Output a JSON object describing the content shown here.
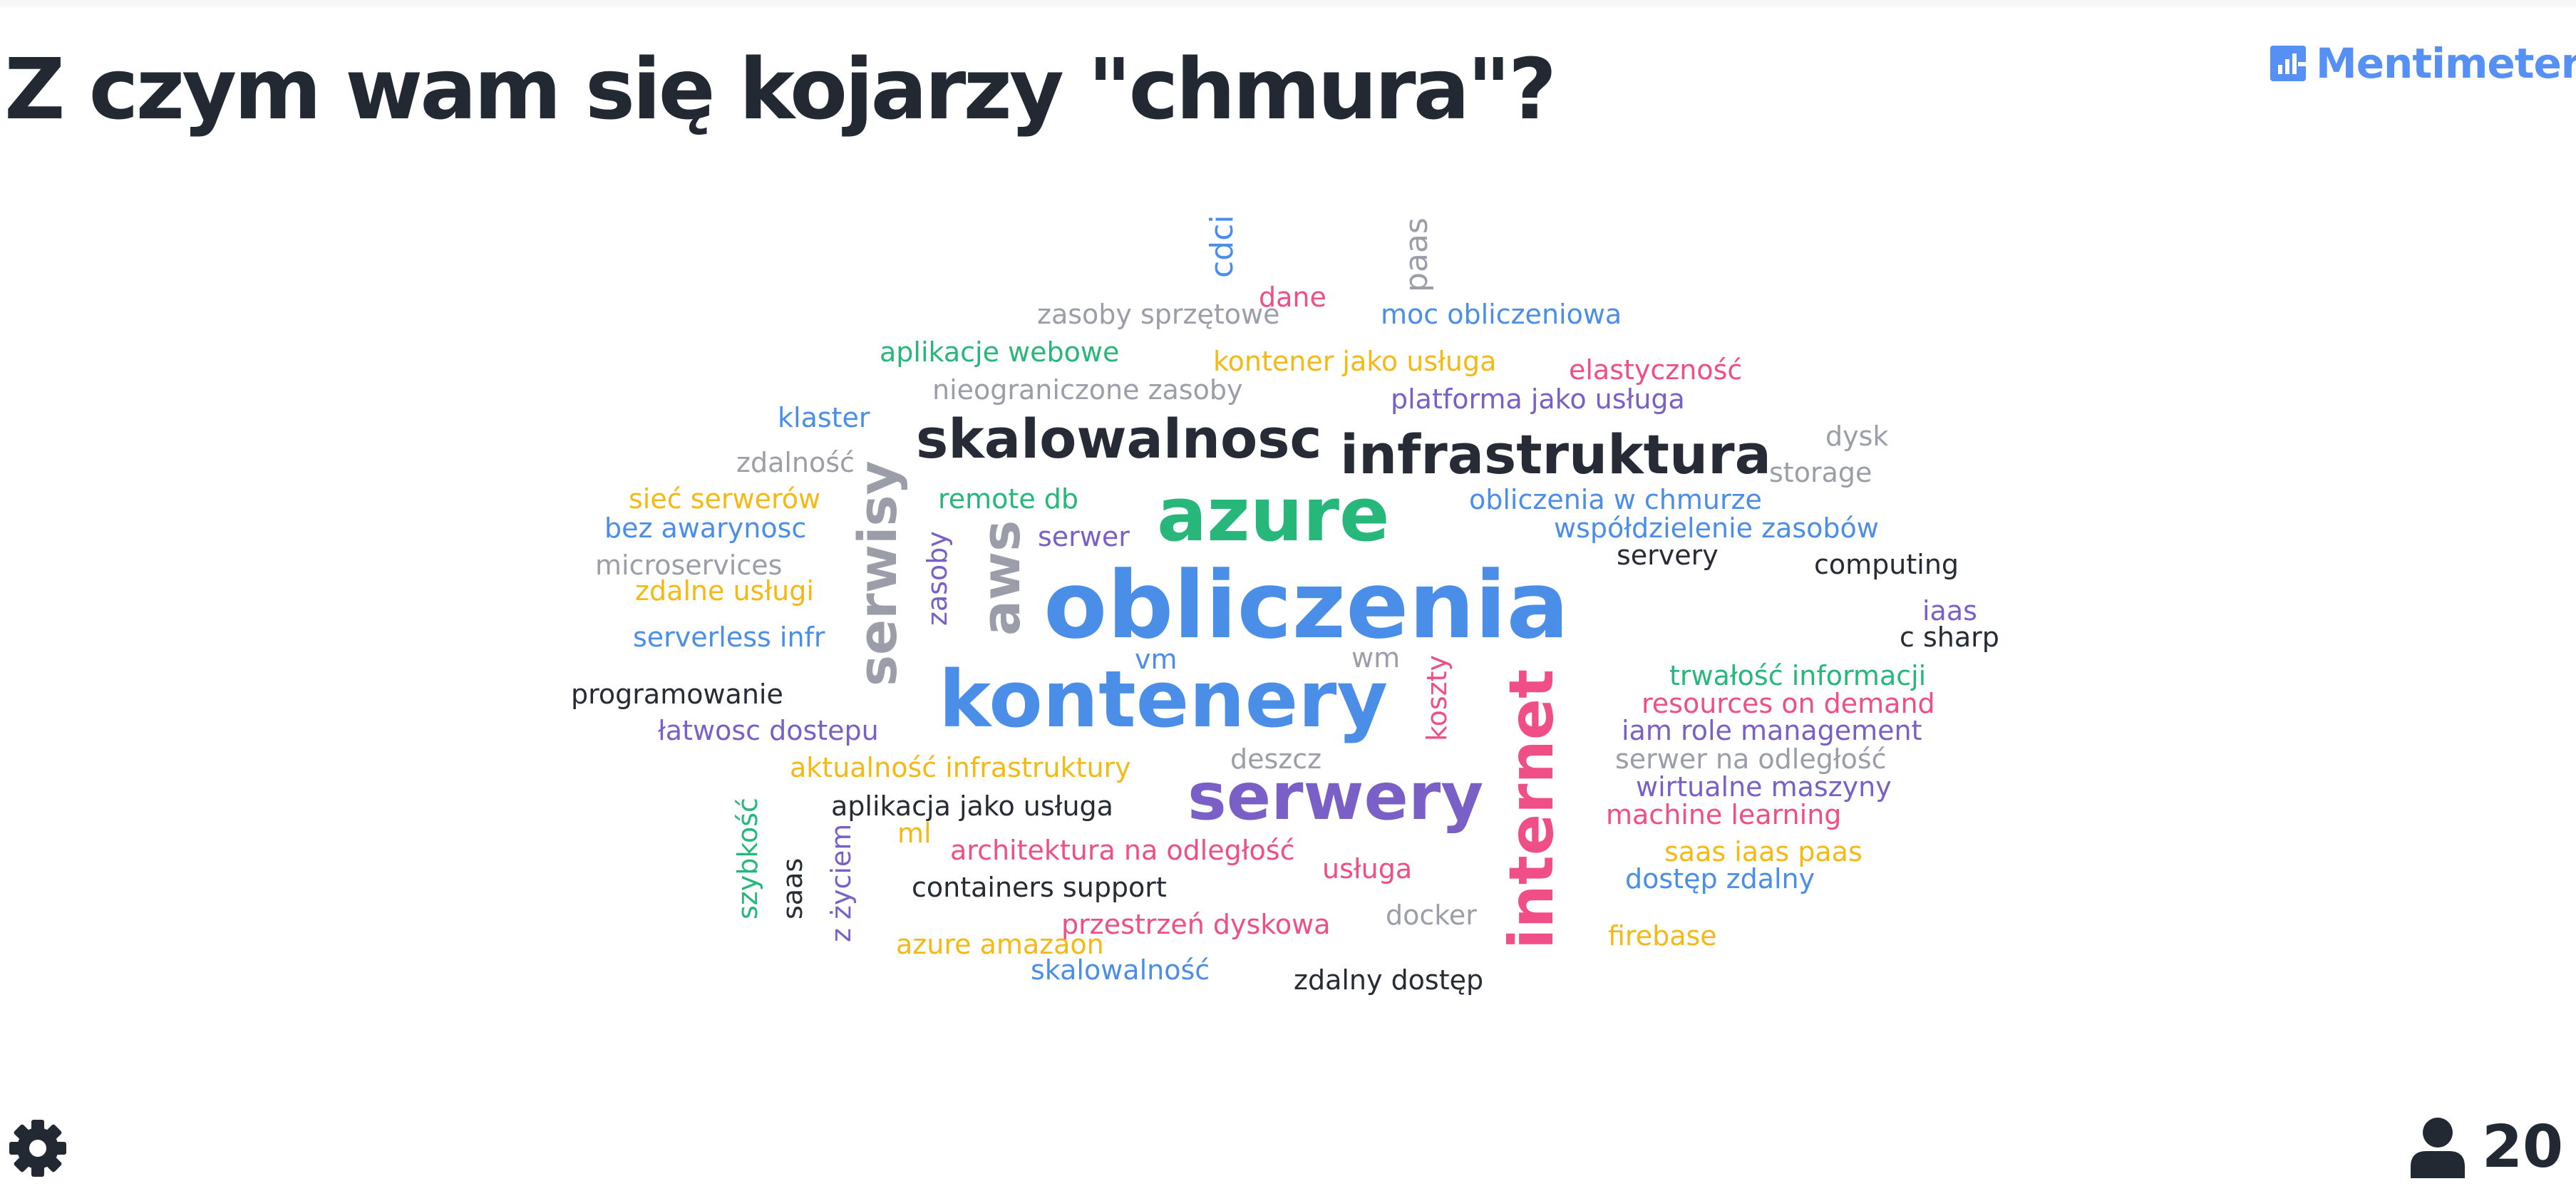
{
  "question": "Z czym wam się kojarzy \"chmura\"?",
  "brand": {
    "name": "Mentimeter",
    "color": "#5690f5",
    "icon": "bar-chart-logo-icon"
  },
  "participants": {
    "count": "20",
    "icon": "user-icon"
  },
  "settings": {
    "icon": "gear-icon"
  },
  "palette": {
    "blue": "#4a8ee8",
    "green": "#27b77b",
    "purple": "#7a60c6",
    "pink": "#ef4e86",
    "yellow": "#f5b915",
    "gray": "#9b9ea8",
    "dark": "#262b36"
  },
  "words": [
    {
      "text": "cdci",
      "color": "blue"
    },
    {
      "text": "paas",
      "color": "gray"
    },
    {
      "text": "dane",
      "color": "pink"
    },
    {
      "text": "zasoby sprzętowe",
      "color": "gray"
    },
    {
      "text": "moc obliczeniowa",
      "color": "blue"
    },
    {
      "text": "aplikacje webowe",
      "color": "green"
    },
    {
      "text": "kontener jako usługa",
      "color": "yellow"
    },
    {
      "text": "elastyczność",
      "color": "pink"
    },
    {
      "text": "nieograniczone zasoby",
      "color": "gray"
    },
    {
      "text": "platforma jako usługa",
      "color": "purple"
    },
    {
      "text": "klaster",
      "color": "blue"
    },
    {
      "text": "skalowalnosc",
      "color": "dark"
    },
    {
      "text": "infrastruktura",
      "color": "dark"
    },
    {
      "text": "dysk",
      "color": "gray"
    },
    {
      "text": "zdalność",
      "color": "gray"
    },
    {
      "text": "storage",
      "color": "gray"
    },
    {
      "text": "sieć serwerów",
      "color": "yellow"
    },
    {
      "text": "remote db",
      "color": "green"
    },
    {
      "text": "azure",
      "color": "green"
    },
    {
      "text": "obliczenia w chmurze",
      "color": "blue"
    },
    {
      "text": "bez awarynosc",
      "color": "blue"
    },
    {
      "text": "serwer",
      "color": "purple"
    },
    {
      "text": "współdzielenie zasobów",
      "color": "blue"
    },
    {
      "text": "microservices",
      "color": "gray"
    },
    {
      "text": "servery",
      "color": "dark"
    },
    {
      "text": "computing",
      "color": "dark"
    },
    {
      "text": "zdalne usługi",
      "color": "yellow"
    },
    {
      "text": "serwisy",
      "color": "gray"
    },
    {
      "text": "aws",
      "color": "gray"
    },
    {
      "text": "zasoby",
      "color": "purple"
    },
    {
      "text": "obliczenia",
      "color": "blue"
    },
    {
      "text": "iaas",
      "color": "purple"
    },
    {
      "text": "serverless infr",
      "color": "blue"
    },
    {
      "text": "c sharp",
      "color": "dark"
    },
    {
      "text": "vm",
      "color": "blue"
    },
    {
      "text": "wm",
      "color": "gray"
    },
    {
      "text": "trwałość informacji",
      "color": "green"
    },
    {
      "text": "programowanie",
      "color": "dark"
    },
    {
      "text": "koszty",
      "color": "pink"
    },
    {
      "text": "kontenery",
      "color": "blue"
    },
    {
      "text": "resources on demand",
      "color": "pink"
    },
    {
      "text": "internet",
      "color": "pink"
    },
    {
      "text": "łatwosc dostepu",
      "color": "purple"
    },
    {
      "text": "iam role management",
      "color": "purple"
    },
    {
      "text": "deszcz",
      "color": "gray"
    },
    {
      "text": "serwer na odległość",
      "color": "gray"
    },
    {
      "text": "aktualność infrastruktury",
      "color": "yellow"
    },
    {
      "text": "wirtualne maszyny",
      "color": "purple"
    },
    {
      "text": "serwery",
      "color": "purple"
    },
    {
      "text": "aplikacja jako usługa",
      "color": "dark"
    },
    {
      "text": "machine learning",
      "color": "pink"
    },
    {
      "text": "szybkość",
      "color": "green"
    },
    {
      "text": "ml",
      "color": "yellow"
    },
    {
      "text": "architektura na odległość",
      "color": "pink"
    },
    {
      "text": "saas iaas paas",
      "color": "yellow"
    },
    {
      "text": "saas",
      "color": "dark"
    },
    {
      "text": "z życiem",
      "color": "purple"
    },
    {
      "text": "usługa",
      "color": "pink"
    },
    {
      "text": "dostęp zdalny",
      "color": "blue"
    },
    {
      "text": "containers support",
      "color": "dark"
    },
    {
      "text": "docker",
      "color": "gray"
    },
    {
      "text": "przestrzeń dyskowa",
      "color": "pink"
    },
    {
      "text": "firebase",
      "color": "yellow"
    },
    {
      "text": "azure amazaon",
      "color": "yellow"
    },
    {
      "text": "skalowalność",
      "color": "blue"
    },
    {
      "text": "zdalny dostęp",
      "color": "dark"
    }
  ]
}
